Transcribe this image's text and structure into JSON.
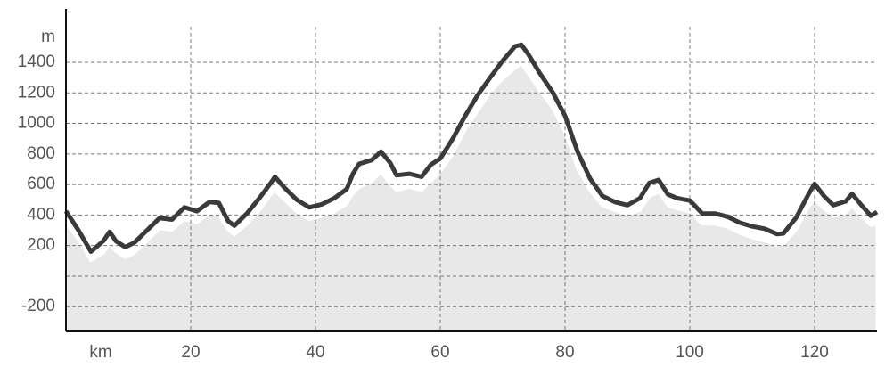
{
  "chart_data": {
    "type": "area-line",
    "xlabel": "km",
    "ylabel": "m",
    "x": [
      0,
      2,
      4,
      6,
      7,
      8,
      9.5,
      11,
      13,
      15,
      17,
      19,
      21,
      23,
      24.5,
      26,
      27,
      29,
      31,
      33,
      33.5,
      35,
      37,
      39,
      41,
      43,
      45,
      46,
      47,
      49,
      50.5,
      52,
      53,
      55,
      57,
      58.5,
      60,
      62,
      64,
      66,
      68,
      70,
      72,
      73,
      74,
      76,
      78,
      80,
      82,
      84,
      86,
      88,
      90,
      92,
      93.5,
      95,
      96.5,
      98,
      100,
      102,
      104,
      106,
      108,
      110,
      112,
      114,
      115,
      117,
      119,
      120,
      121.5,
      123,
      125,
      126,
      127.5,
      129,
      130
    ],
    "series": [
      {
        "kind": "area",
        "color": "#e8e8e8",
        "values": [
          340,
          240,
          100,
          150,
          210,
          160,
          120,
          150,
          230,
          310,
          300,
          370,
          350,
          410,
          400,
          300,
          270,
          340,
          430,
          540,
          560,
          500,
          420,
          370,
          390,
          420,
          470,
          540,
          580,
          620,
          680,
          600,
          560,
          580,
          560,
          620,
          680,
          800,
          960,
          1080,
          1200,
          1290,
          1360,
          1390,
          1330,
          1210,
          1100,
          940,
          700,
          560,
          460,
          430,
          400,
          430,
          520,
          550,
          460,
          440,
          420,
          340,
          340,
          320,
          280,
          250,
          230,
          200,
          210,
          300,
          450,
          500,
          440,
          390,
          410,
          460,
          390,
          330,
          340
        ]
      },
      {
        "kind": "line",
        "color": "#3a3a3a",
        "values": [
          425,
          300,
          160,
          230,
          290,
          230,
          190,
          220,
          300,
          380,
          370,
          450,
          425,
          485,
          480,
          360,
          330,
          410,
          510,
          620,
          650,
          580,
          500,
          450,
          470,
          510,
          570,
          670,
          735,
          760,
          815,
          740,
          660,
          670,
          650,
          730,
          770,
          900,
          1050,
          1185,
          1300,
          1410,
          1505,
          1515,
          1460,
          1325,
          1205,
          1050,
          815,
          640,
          525,
          485,
          465,
          510,
          610,
          630,
          535,
          510,
          495,
          410,
          410,
          390,
          350,
          325,
          310,
          275,
          280,
          380,
          535,
          605,
          525,
          465,
          490,
          540,
          465,
          395,
          420
        ]
      }
    ],
    "xlim": [
      0,
      130
    ],
    "ylim": [
      -362,
      1750
    ],
    "xticks": [
      20,
      40,
      60,
      80,
      100,
      120
    ],
    "yticks": [
      -200,
      {
        "value": 0,
        "label": null
      },
      200,
      400,
      600,
      800,
      1000,
      1200,
      1400
    ],
    "grid": true
  }
}
